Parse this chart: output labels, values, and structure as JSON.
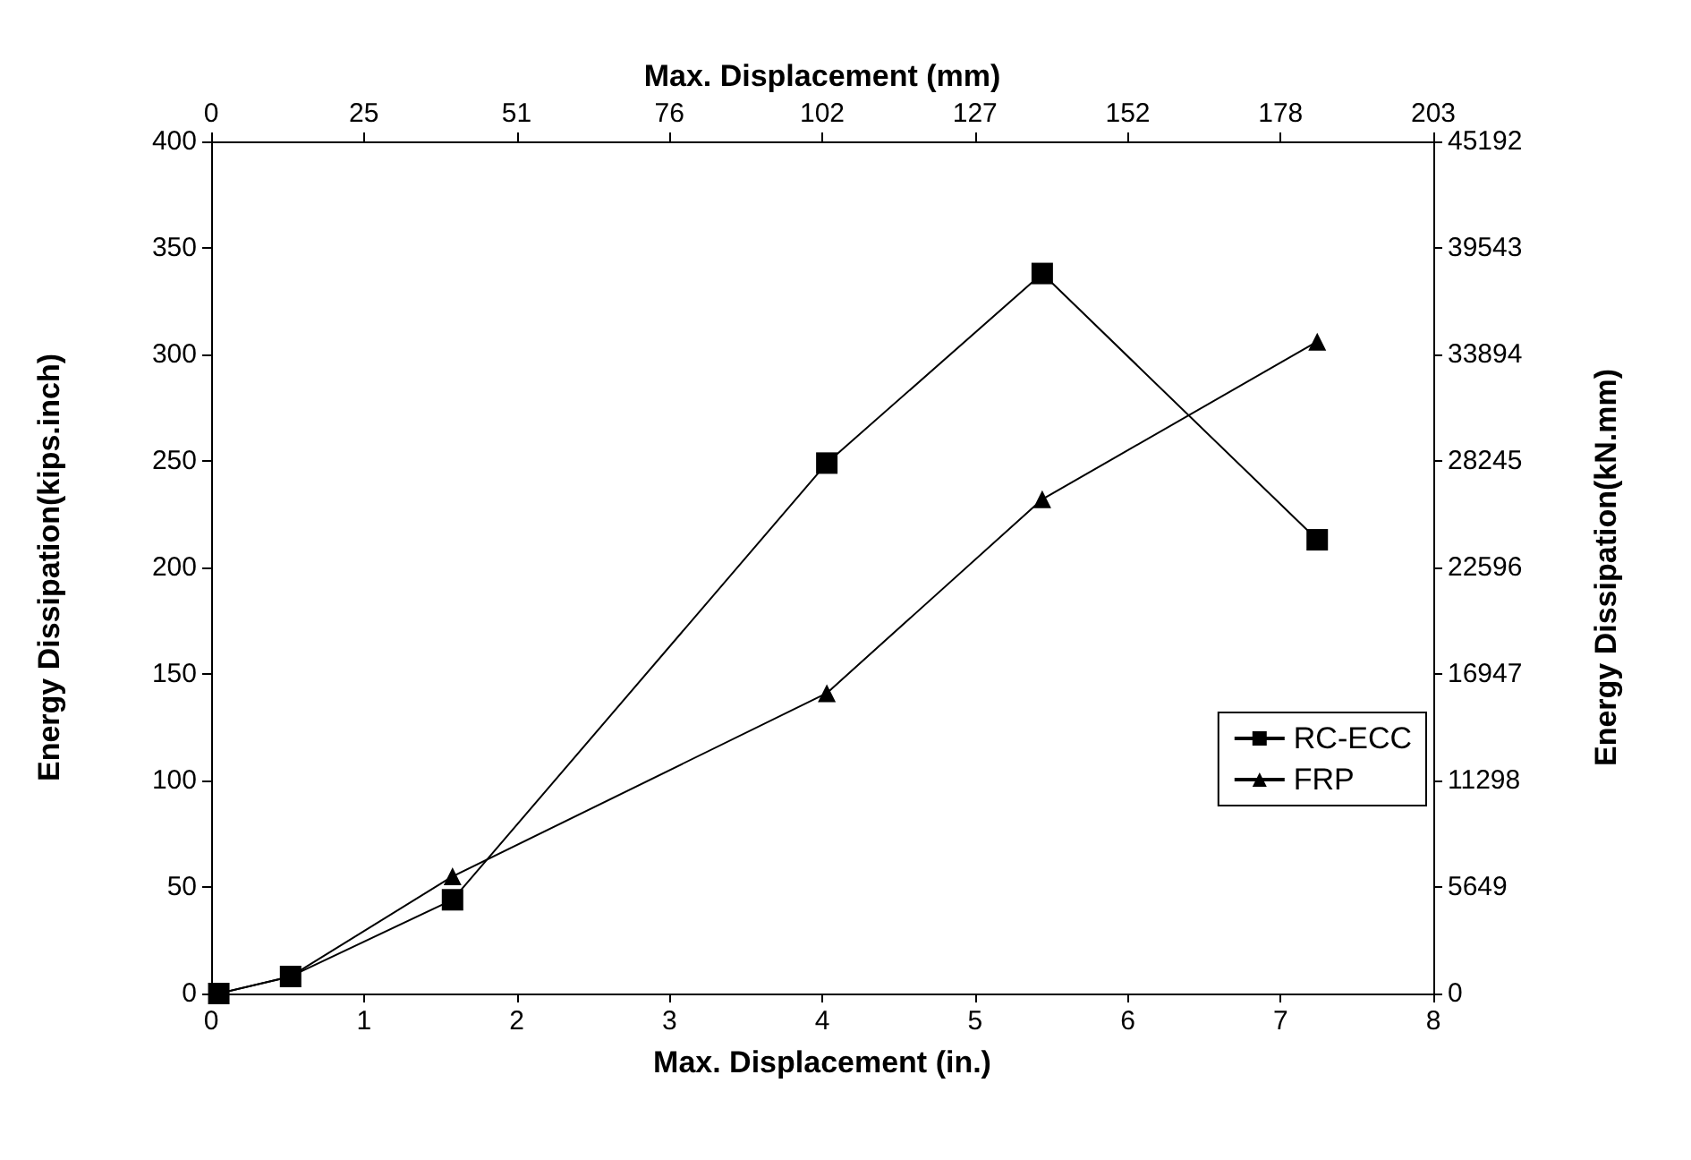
{
  "chart_data": {
    "type": "line",
    "xlabel": "Max. Displacement (in.)",
    "ylabel": "Energy Dissipation(kips.inch)",
    "y2label": "Energy Dissipation(kN.mm)",
    "x2label": "Max. Displacement (mm)",
    "xlim": [
      0,
      8
    ],
    "xticks": [
      0,
      1,
      2,
      3,
      4,
      5,
      6,
      7,
      8
    ],
    "x2lim": [
      0,
      203.2
    ],
    "x2ticks": [
      0,
      {
        "value": 25.4,
        "label": "25"
      },
      {
        "value": 50.8,
        "label": "51"
      },
      {
        "value": 76.2,
        "label": "76"
      },
      {
        "value": 101.6,
        "label": "102"
      },
      {
        "value": 127,
        "label": "127"
      },
      {
        "value": 152.4,
        "label": "152"
      },
      {
        "value": 177.8,
        "label": "178"
      },
      {
        "value": 203.2,
        "label": "203"
      }
    ],
    "ylim": [
      0,
      400
    ],
    "yticks": [
      0,
      50,
      100,
      150,
      200,
      250,
      300,
      350,
      400
    ],
    "y2lim": [
      0,
      45192
    ],
    "y2ticks": [
      0,
      5649,
      11298,
      16947,
      22596,
      28245,
      33894,
      39543,
      45192
    ],
    "grid": false,
    "legend": "right",
    "line_style": "solid",
    "x": [
      0.05,
      0.52,
      1.58,
      4.03,
      5.44,
      7.24
    ],
    "series": [
      {
        "name": "RC-ECC",
        "color": "#000000",
        "marker": "square",
        "values": [
          0,
          8,
          44,
          249,
          338,
          213
        ]
      },
      {
        "name": "FRP",
        "color": "#000000",
        "marker": "triangle",
        "values": [
          0,
          8,
          55,
          141,
          232,
          306
        ]
      }
    ]
  }
}
